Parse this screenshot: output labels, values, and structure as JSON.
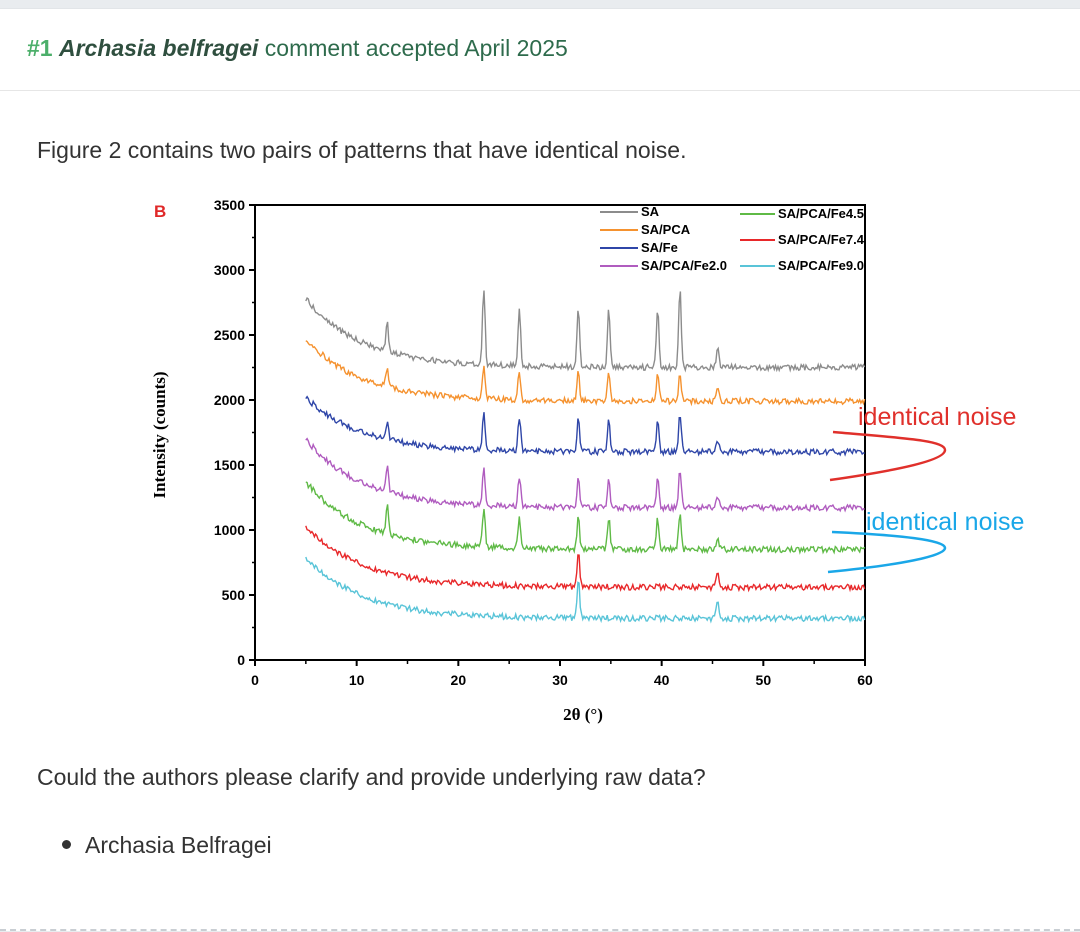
{
  "comment": {
    "number": "#1",
    "author_species": "Archasia belfragei",
    "status": "comment accepted April 2025",
    "paragraph1": "Figure 2 contains two pairs of patterns that have identical noise.",
    "paragraph2": "Could the authors please clarify and provide underlying raw data?",
    "signature": "Archasia Belfragei"
  },
  "annotations": {
    "top": "identical noise",
    "bottom": "identical noise",
    "top_color": "#e0302b",
    "bottom_color": "#1aa7e8"
  },
  "chart_data": {
    "type": "line",
    "panel_label": "B",
    "xlabel": "2θ (°)",
    "ylabel": "Intensity (counts)",
    "xlim": [
      0,
      60
    ],
    "ylim": [
      0,
      3500
    ],
    "xticks": [
      "0",
      "10",
      "20",
      "30",
      "40",
      "50",
      "60"
    ],
    "yticks": [
      "0",
      "500",
      "1000",
      "1500",
      "2000",
      "2500",
      "3000",
      "3500"
    ],
    "peaks_2theta": [
      13,
      22.5,
      26,
      31.8,
      34.8,
      39.6,
      41.8,
      45.5
    ],
    "series": [
      {
        "name": "SA",
        "color": "#8c8c8c",
        "baseline": 2250,
        "start": 2780,
        "peak_heights": [
          230,
          600,
          450,
          450,
          450,
          450,
          600,
          150
        ]
      },
      {
        "name": "SA/PCA",
        "color": "#f5922f",
        "baseline": 1990,
        "start": 2470,
        "peak_heights": [
          150,
          240,
          220,
          220,
          220,
          220,
          220,
          100
        ]
      },
      {
        "name": "SA/Fe",
        "color": "#2f46a8",
        "baseline": 1600,
        "start": 2020,
        "peak_heights": [
          130,
          300,
          260,
          260,
          260,
          240,
          300,
          100
        ]
      },
      {
        "name": "SA/PCA/Fe2.0",
        "color": "#b05cbf",
        "baseline": 1170,
        "start": 1700,
        "peak_heights": [
          200,
          300,
          230,
          230,
          230,
          230,
          300,
          100
        ]
      },
      {
        "name": "SA/PCA/Fe4.5",
        "color": "#5fba46",
        "baseline": 850,
        "start": 1370,
        "peak_heights": [
          220,
          300,
          240,
          240,
          240,
          240,
          300,
          100
        ]
      },
      {
        "name": "SA/PCA/Fe7.4",
        "color": "#e8282a",
        "baseline": 560,
        "start": 1030,
        "peak_heights": [
          0,
          0,
          0,
          270,
          0,
          0,
          0,
          130
        ]
      },
      {
        "name": "SA/PCA/Fe9.0",
        "color": "#59c4d8",
        "baseline": 320,
        "start": 790,
        "peak_heights": [
          0,
          0,
          0,
          300,
          0,
          0,
          0,
          150
        ]
      }
    ],
    "legend": [
      {
        "label": "SA",
        "color": "#8c8c8c"
      },
      {
        "label": "SA/PCA",
        "color": "#f5922f"
      },
      {
        "label": "SA/Fe",
        "color": "#2f46a8"
      },
      {
        "label": "SA/PCA/Fe2.0",
        "color": "#b05cbf"
      },
      {
        "label": "SA/PCA/Fe4.5",
        "color": "#5fba46"
      },
      {
        "label": "SA/PCA/Fe7.4",
        "color": "#e8282a"
      },
      {
        "label": "SA/PCA/Fe9.0",
        "color": "#59c4d8"
      }
    ]
  }
}
